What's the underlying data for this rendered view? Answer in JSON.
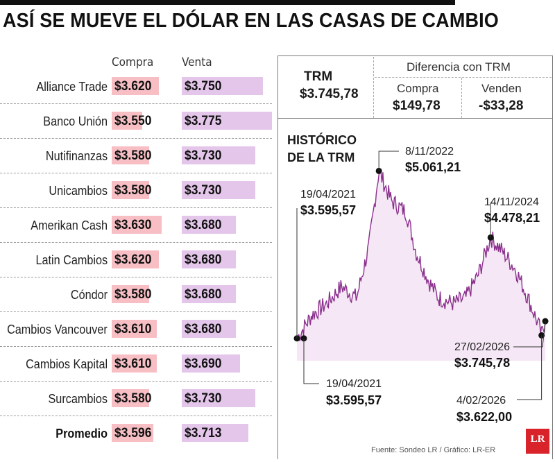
{
  "title": "ASÍ SE MUEVE EL DÓLAR EN LAS CASAS DE CAMBIO",
  "table": {
    "col_buy": "Compra",
    "col_sell": "Venta",
    "rows": [
      {
        "name": "Alliance Trade",
        "buy": "$3.620",
        "sell": "$3.750"
      },
      {
        "name": "Banco Unión",
        "buy": "$3.550",
        "sell": "$3.775"
      },
      {
        "name": "Nutifinanzas",
        "buy": "$3.580",
        "sell": "$3.730"
      },
      {
        "name": "Unicambios",
        "buy": "$3.580",
        "sell": "$3.730"
      },
      {
        "name": "Amerikan Cash",
        "buy": "$3.630",
        "sell": "$3.680"
      },
      {
        "name": "Latin Cambios",
        "buy": "$3.620",
        "sell": "$3.680"
      },
      {
        "name": "Cóndor",
        "buy": "$3.580",
        "sell": "$3.680"
      },
      {
        "name": "Cambios Vancouver",
        "buy": "$3.610",
        "sell": "$3.680"
      },
      {
        "name": "Cambios Kapital",
        "buy": "$3.610",
        "sell": "$3.690"
      },
      {
        "name": "Surcambios",
        "buy": "$3.580",
        "sell": "$3.730"
      },
      {
        "name": "Promedio",
        "buy": "$3.596",
        "sell": "$3.713"
      }
    ]
  },
  "trm": {
    "label": "TRM",
    "value": "$3.745,78",
    "diff_label": "Diferencia con TRM",
    "buy_label": "Compra",
    "buy_diff": "$149,78",
    "sell_label": "Venden",
    "sell_diff": "-$33,28"
  },
  "history": {
    "title_line1": "HISTÓRICO",
    "title_line2": "DE LA TRM",
    "annotations": [
      {
        "date": "19/04/2021",
        "value": "$3.595,57"
      },
      {
        "date": "8/11/2022",
        "value": "$5.061,21"
      },
      {
        "date": "14/11/2024",
        "value": "$4.478,21"
      },
      {
        "date": "19/04/2021",
        "value": "$3.595,57"
      },
      {
        "date": "27/02/2026",
        "value": "$3.745,78"
      },
      {
        "date": "4/02/2026",
        "value": "$3.622,00"
      }
    ]
  },
  "source": "Fuente: Sondeo LR / Gráfico: LR-ER",
  "logo_text": "LR",
  "colors": {
    "buy_bar": "#f7bfc4",
    "sell_bar": "#e4c6ea",
    "line": "#8a2f8c",
    "area": "#f3dff3",
    "logo": "#d8232a"
  },
  "chart_data": {
    "type": "area",
    "title": "HISTÓRICO DE LA TRM",
    "x": [
      "19/04/2021",
      "8/11/2022",
      "14/11/2024",
      "4/02/2026",
      "27/02/2026"
    ],
    "values": [
      3595.57,
      5061.21,
      4478.21,
      3622.0,
      3745.78
    ],
    "ylim": [
      3400,
      5100
    ],
    "grid": false,
    "legend": "none"
  }
}
